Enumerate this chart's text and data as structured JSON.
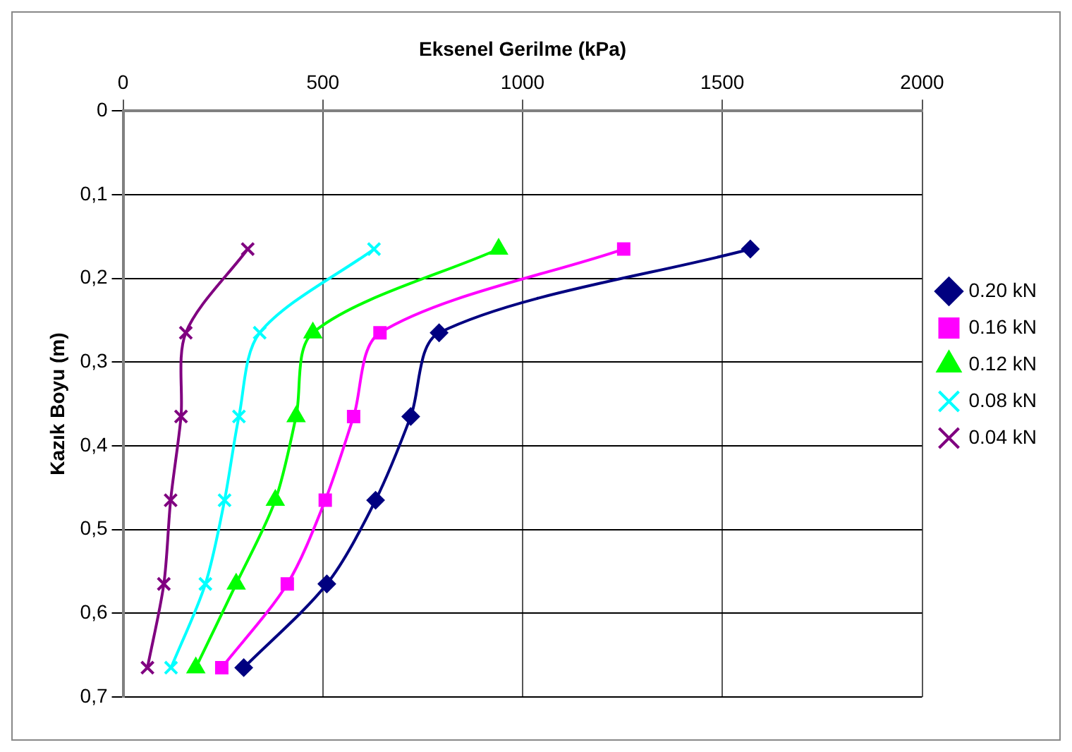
{
  "chart_data": {
    "type": "line",
    "xlabel": "Eksenel Gerilme (kPa)",
    "ylabel": "Kazık Boyu (m)",
    "xlim": [
      0,
      2000
    ],
    "xticks": [
      0,
      500,
      1000,
      1500,
      2000
    ],
    "ylim": [
      0.7,
      0
    ],
    "yticks": [
      0,
      {
        "value": 0.1,
        "label": "0,1"
      },
      {
        "value": 0.2,
        "label": "0,2"
      },
      {
        "value": 0.3,
        "label": "0,3"
      },
      {
        "value": 0.4,
        "label": "0,4"
      },
      {
        "value": 0.5,
        "label": "0,5"
      },
      {
        "value": 0.6,
        "label": "0,6"
      },
      {
        "value": 0.7,
        "label": "0,7"
      }
    ],
    "grid": true,
    "legend": "right",
    "series": [
      {
        "name": "0.20 kN",
        "color": "#000080",
        "marker": "diamond",
        "x": [
          1570,
          791,
          720,
          632,
          510,
          302
        ],
        "values": [
          0.165,
          0.265,
          0.365,
          0.465,
          0.565,
          0.665
        ]
      },
      {
        "name": "0.16 kN",
        "color": "#ff00ff",
        "marker": "square",
        "x": [
          1253,
          643,
          577,
          506,
          411,
          247
        ],
        "values": [
          0.165,
          0.265,
          0.365,
          0.465,
          0.565,
          0.665
        ]
      },
      {
        "name": "0.12 kN",
        "color": "#00ff00",
        "marker": "triangle",
        "x": [
          940,
          475,
          433,
          381,
          283,
          182
        ],
        "values": [
          0.165,
          0.265,
          0.365,
          0.465,
          0.565,
          0.665
        ]
      },
      {
        "name": "0.08 kN",
        "color": "#00ffff",
        "marker": "cross",
        "x": [
          628,
          342,
          290,
          254,
          206,
          120
        ],
        "values": [
          0.165,
          0.265,
          0.365,
          0.465,
          0.565,
          0.665
        ]
      },
      {
        "name": "0.04 kN",
        "color": "#800080",
        "marker": "cross",
        "x": [
          312,
          157,
          145,
          119,
          102,
          61
        ],
        "values": [
          0.165,
          0.265,
          0.365,
          0.465,
          0.565,
          0.665
        ]
      }
    ]
  }
}
